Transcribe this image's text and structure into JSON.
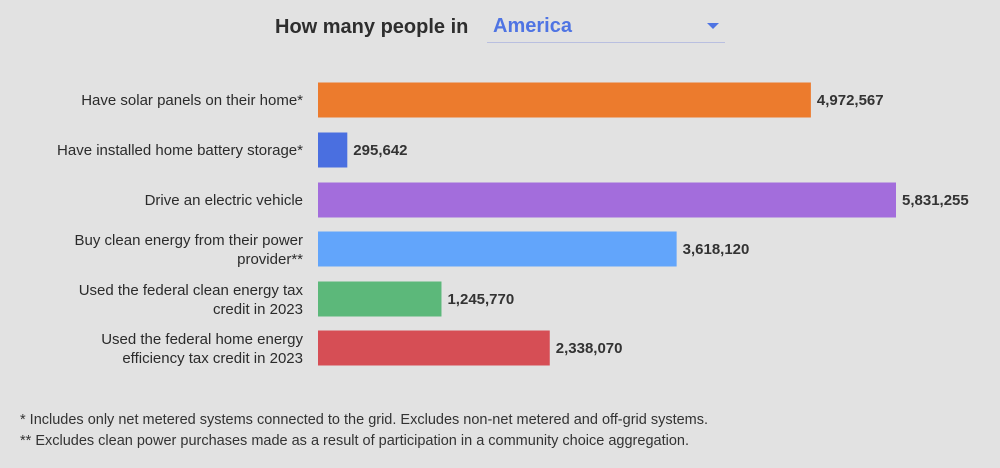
{
  "header": {
    "title": "How many people in",
    "selected_region": "America"
  },
  "chart_data": {
    "type": "bar",
    "orientation": "horizontal",
    "categories": [
      [
        "Have solar panels on their home*"
      ],
      [
        "Have installed home battery storage*"
      ],
      [
        "Drive an electric vehicle"
      ],
      [
        "Buy clean energy from their power",
        "provider**"
      ],
      [
        "Used the federal clean energy tax",
        "credit in 2023"
      ],
      [
        "Used the federal home energy",
        "efficiency tax credit in 2023"
      ]
    ],
    "values": [
      4972567,
      295642,
      5831255,
      3618120,
      1245770,
      2338070
    ],
    "value_labels": [
      "4,972,567",
      "295,642",
      "5,831,255",
      "3,618,120",
      "1,245,770",
      "2,338,070"
    ],
    "colors": [
      "#ec7b2d",
      "#4a6fe0",
      "#a36ddc",
      "#62a5fb",
      "#5cb87a",
      "#d64e55"
    ],
    "grid": false
  },
  "footnotes": [
    "* Includes only net metered systems connected to the grid. Excludes non-net metered and off-grid systems.",
    "** Excludes clean power purchases made as a result of participation in a community choice aggregation."
  ]
}
